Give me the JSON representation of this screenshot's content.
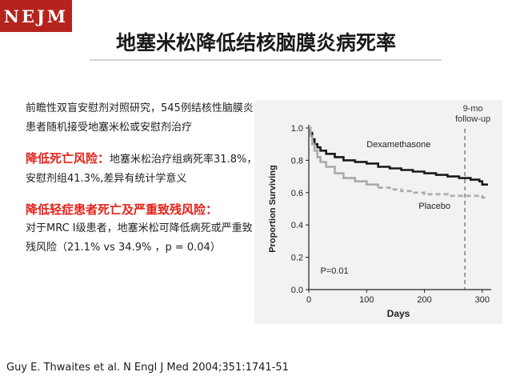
{
  "logo": {
    "text": "NEJM"
  },
  "title": "地塞米松降低结核脑膜炎病死率",
  "text": {
    "intro": "前瞻性双盲安慰剂对照研究，545例结核性脑膜炎患者随机接受地塞米松或安慰剂治疗",
    "highlight1": "降低死亡风险：",
    "body1": "地塞米松治疗组病死率31.8%，安慰剂组41.3%,差异有统计学意义",
    "highlight2": "降低轻症患者死亡及严重致残风险：",
    "body2": "对于MRC I级患者，地塞米松可降低病死或严重致残风险（21.1% vs 34.9% ，p = 0.04）"
  },
  "citation": "Guy E. Thwaites et al. N Engl J Med 2004;351:1741-51",
  "chart_data": {
    "type": "line",
    "xlabel": "Days",
    "ylabel": "Proportion Surviving",
    "xlim": [
      0,
      310
    ],
    "ylim": [
      0.0,
      1.0
    ],
    "xticks": [
      "0",
      "100",
      "200",
      "300"
    ],
    "yticks": [
      "0.0",
      "0.2",
      "0.4",
      "0.6",
      "0.8",
      "1.0"
    ],
    "annotations": {
      "followup": "9-mo follow-up",
      "followup_line1": "9-mo",
      "followup_line2": "follow-up",
      "followup_day": 270,
      "pvalue": "P=0.01"
    },
    "series": [
      {
        "name": "Dexamethasone",
        "color": "#1a1a1a",
        "dashed_after": null,
        "points": [
          [
            0,
            1.0
          ],
          [
            3,
            0.97
          ],
          [
            6,
            0.93
          ],
          [
            10,
            0.9
          ],
          [
            15,
            0.88
          ],
          [
            20,
            0.86
          ],
          [
            30,
            0.84
          ],
          [
            45,
            0.82
          ],
          [
            60,
            0.8
          ],
          [
            80,
            0.79
          ],
          [
            100,
            0.78
          ],
          [
            120,
            0.76
          ],
          [
            140,
            0.75
          ],
          [
            160,
            0.74
          ],
          [
            180,
            0.73
          ],
          [
            200,
            0.72
          ],
          [
            220,
            0.71
          ],
          [
            240,
            0.7
          ],
          [
            260,
            0.69
          ],
          [
            280,
            0.68
          ],
          [
            295,
            0.67
          ],
          [
            300,
            0.65
          ],
          [
            310,
            0.65
          ]
        ]
      },
      {
        "name": "Placebo",
        "color": "#aaaaaa",
        "dashed_after": 120,
        "points": [
          [
            0,
            1.0
          ],
          [
            3,
            0.95
          ],
          [
            6,
            0.9
          ],
          [
            10,
            0.86
          ],
          [
            15,
            0.82
          ],
          [
            20,
            0.79
          ],
          [
            30,
            0.76
          ],
          [
            45,
            0.72
          ],
          [
            60,
            0.69
          ],
          [
            80,
            0.67
          ],
          [
            100,
            0.65
          ],
          [
            120,
            0.63
          ],
          [
            140,
            0.62
          ],
          [
            160,
            0.61
          ],
          [
            180,
            0.6
          ],
          [
            200,
            0.59
          ],
          [
            220,
            0.59
          ],
          [
            240,
            0.58
          ],
          [
            260,
            0.58
          ],
          [
            280,
            0.58
          ],
          [
            300,
            0.57
          ],
          [
            310,
            0.57
          ]
        ]
      }
    ]
  }
}
